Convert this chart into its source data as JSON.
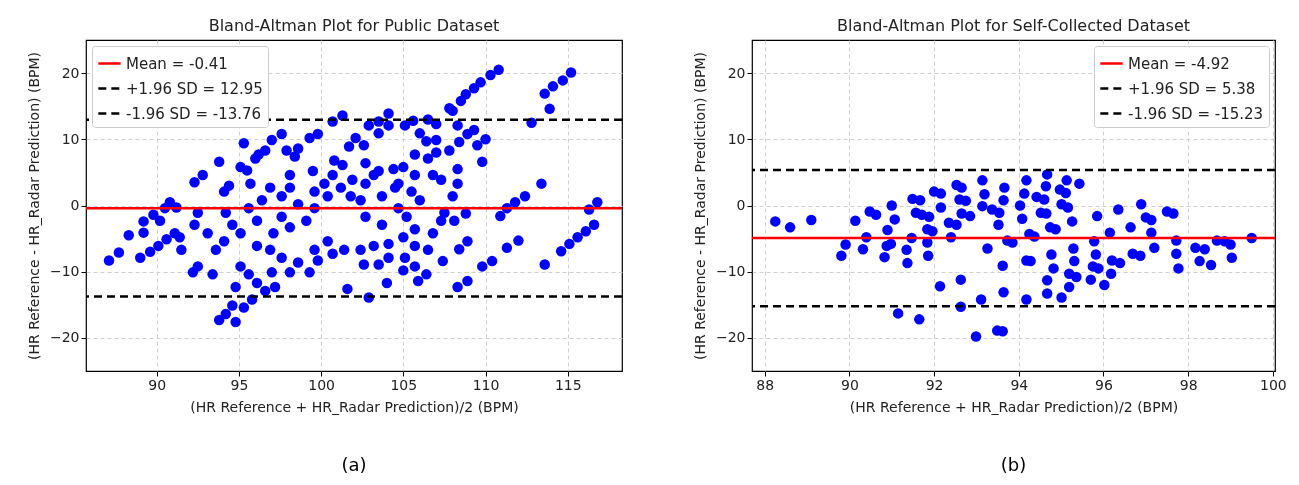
{
  "chart_data": [
    {
      "type": "scatter",
      "title": "Bland-Altman Plot for Public Dataset",
      "xlabel": "(HR Reference + HR_Radar Prediction)/2 (BPM)",
      "ylabel": "(HR Reference - HR_Radar Prediction) (BPM)",
      "xlim": [
        85.7,
        118.3
      ],
      "ylim": [
        -25,
        25
      ],
      "xticks": [
        90,
        95,
        100,
        105,
        110,
        115
      ],
      "yticks": [
        -20,
        -10,
        0,
        10,
        20
      ],
      "grid": true,
      "marker": "circle",
      "legend": "top left",
      "annotations": [
        "(a)"
      ],
      "ref_lines": [
        {
          "axis": "y",
          "value": -0.41,
          "label": "Mean = -0.41",
          "color": "#ff0000",
          "line_style": "solid"
        },
        {
          "axis": "y",
          "value": 12.95,
          "label": "+1.96 SD = 12.95",
          "color": "#000000",
          "line_style": "dashed"
        },
        {
          "axis": "y",
          "value": -13.76,
          "label": "-1.96 SD = -13.76",
          "color": "#000000",
          "line_style": "dashed"
        }
      ],
      "series": [
        {
          "color": "#0000ff",
          "x": [
            87.1,
            87.7,
            88.3,
            89.0,
            89.2,
            89.2,
            89.6,
            89.8,
            90.1,
            90.2,
            90.5,
            90.8,
            90.6,
            91.2,
            91.1,
            91.5,
            91.4,
            92.3,
            92.8,
            92.2,
            92.5,
            92.5,
            92.3,
            93.1,
            93.4,
            93.8,
            93.8,
            94.2,
            94.8,
            94.6,
            95.3,
            95.3,
            95.1,
            95.5,
            94.1,
            94.4,
            96.0,
            96.2,
            97.0,
            96.6,
            97.6,
            97.9,
            98.4,
            98.6,
            99.3,
            99.8,
            95.7,
            96.4,
            94.2,
            94.6,
            94.1,
            93.6,
            95.1,
            95.6,
            96.1,
            96.6,
            97.2,
            97.0,
            94.8,
            95.8,
            96.1,
            96.9,
            97.6,
            98.1,
            98.6,
            99.3,
            99.8,
            98.1,
            99.1,
            97.6,
            98.1,
            99.5,
            97.6,
            97.1,
            99.6,
            100.4,
            100.7,
            101.4,
            101.6,
            100.7,
            100.8,
            101.3,
            101.3,
            100.7,
            101.7,
            102.1,
            102.6,
            101.2,
            101.9,
            102.7,
            103.2,
            102.7,
            103.5,
            101.8,
            102.4,
            102.9,
            103.5,
            103.5,
            104.1,
            104.1,
            102.9,
            104.0,
            102.6,
            102.4,
            102.7,
            103.2,
            103.5,
            104.1,
            104.1,
            103.7,
            104.5,
            104.4,
            105.0,
            105.1,
            105.6,
            106.5,
            106.0,
            106.4,
            107.0,
            107.0,
            105.7,
            105.7,
            106.5,
            106.8,
            107.0,
            107.3,
            107.8,
            107.8,
            108.0,
            108.3,
            108.5,
            108.8,
            109.3,
            109.7,
            110.3,
            110.8,
            108.4,
            108.9,
            109.3,
            109.5,
            110.0,
            109.8,
            108.3,
            108.3,
            108.0,
            107.5,
            107.3,
            108.1,
            108.8,
            108.9,
            108.4,
            107.4,
            105.7,
            105.7,
            106.5,
            106.8,
            105.2,
            105.0,
            105.1,
            105.0,
            105.7,
            105.9,
            106.4,
            108.3,
            108.9,
            109.8,
            110.4,
            110.9,
            111.3,
            111.8,
            112.4,
            111.3,
            112.0,
            112.8,
            113.4,
            113.6,
            113.6,
            113.9,
            114.1,
            114.7,
            115.2,
            114.6,
            115.1,
            115.6,
            116.1,
            116.6,
            116.3,
            116.8,
            99.6,
            100.2,
            100.4,
            99.6,
            98.6,
            96.9,
            95.6,
            96.1,
            95.1,
            98.1,
            104.7,
            105.5,
            106.0,
            103.7,
            104.7
          ],
          "values": [
            -8.3,
            -7.1,
            -4.5,
            -7.9,
            -4.1,
            -2.4,
            -7.0,
            -1.4,
            -6.1,
            -2.3,
            -0.4,
            0.5,
            -5.1,
            -0.3,
            -4.2,
            -6.7,
            -4.8,
            3.5,
            4.6,
            -10.1,
            -1.1,
            -9.2,
            -2.9,
            -4.2,
            -10.4,
            6.6,
            -17.3,
            -16.4,
            -17.6,
            -15.1,
            -15.4,
            9.4,
            5.8,
            5.3,
            2.1,
            3.0,
            7.1,
            7.7,
            9.9,
            8.3,
            10.8,
            8.3,
            7.4,
            8.6,
            10.2,
            10.8,
            3.3,
            0.8,
            -1.1,
            -2.9,
            -5.4,
            -6.7,
            -9.2,
            -10.4,
            -11.7,
            -12.9,
            -12.3,
            -10.1,
            -12.3,
            -14.2,
            -6.1,
            -6.7,
            -7.9,
            -10.1,
            -8.6,
            -10.1,
            -8.3,
            -3.3,
            -2.3,
            1.4,
            2.7,
            5.2,
            -1.7,
            -4.2,
            -6.7,
            -5.4,
            -7.3,
            -6.7,
            -12.6,
            4.6,
            6.8,
            6.1,
            13.6,
            12.7,
            8.9,
            10.2,
            9.1,
            2.7,
            3.9,
            3.3,
            4.6,
            6.4,
            5.2,
            1.4,
            0.8,
            12.1,
            12.7,
            10.9,
            13.9,
            12.1,
            -13.9,
            -11.7,
            -8.9,
            -6.7,
            -1.7,
            -6.1,
            -8.9,
            -5.8,
            -7.9,
            -2.9,
            2.7,
            5.5,
            5.8,
            12.1,
            12.8,
            13.0,
            10.9,
            9.7,
            12.3,
            9.9,
            7.7,
            4.6,
            7.1,
            4.6,
            8.0,
            3.9,
            8.3,
            14.7,
            14.3,
            12.1,
            15.8,
            16.8,
            17.7,
            18.6,
            19.7,
            20.5,
            9.6,
            10.8,
            11.4,
            9.1,
            10.0,
            6.6,
            5.5,
            3.3,
            1.4,
            -1.1,
            -2.3,
            -2.3,
            -1.2,
            -5.4,
            -6.6,
            -8.4,
            -3.6,
            -6.1,
            -6.7,
            -4.2,
            -1.7,
            -4.8,
            -7.9,
            -9.8,
            -9.2,
            -11.4,
            -10.4,
            -12.3,
            -11.4,
            -9.2,
            -8.4,
            -1.6,
            -0.4,
            0.5,
            1.4,
            -6.4,
            -5.3,
            12.5,
            3.3,
            -8.9,
            16.9,
            14.6,
            18.0,
            18.9,
            20.1,
            -6.9,
            -5.8,
            -4.8,
            -3.9,
            -2.9,
            -0.6,
            0.5,
            2.1,
            3.3,
            1.4,
            -0.4,
            0.2,
            2.7,
            -0.4,
            -2.3,
            -4.2,
            4.6,
            3.3,
            2.1,
            0.8,
            1.4,
            -0.4
          ]
        }
      ]
    },
    {
      "type": "scatter",
      "title": "Bland-Altman Plot for Self-Collected Dataset",
      "xlabel": "(HR Reference + HR_Radar Prediction)/2 (BPM)",
      "ylabel": "(HR Reference - HR_Radar Prediction) (BPM)",
      "xlim": [
        87.7,
        100.05
      ],
      "ylim": [
        -25,
        25
      ],
      "xticks": [
        88,
        90,
        92,
        94,
        96,
        98,
        100
      ],
      "yticks": [
        -20,
        -10,
        0,
        10,
        20
      ],
      "grid": true,
      "marker": "circle",
      "legend": "top right",
      "annotations": [
        "(b)"
      ],
      "ref_lines": [
        {
          "axis": "y",
          "value": -4.92,
          "label": "Mean = -4.92",
          "color": "#ff0000",
          "line_style": "solid"
        },
        {
          "axis": "y",
          "value": 5.38,
          "label": "+1.96 SD = 5.38",
          "color": "#000000",
          "line_style": "dashed"
        },
        {
          "axis": "y",
          "value": -15.23,
          "label": "-1.96 SD = -15.23",
          "color": "#000000",
          "line_style": "dashed"
        }
      ],
      "series": [
        {
          "color": "#0000ff",
          "x": [
            88.25,
            88.6,
            89.1,
            89.81,
            89.91,
            90.14,
            90.32,
            90.4,
            90.48,
            90.63,
            90.83,
            90.88,
            90.9,
            90.98,
            91.0,
            91.07,
            91.15,
            91.35,
            91.37,
            91.47,
            91.49,
            91.57,
            91.67,
            91.65,
            91.71,
            91.84,
            91.84,
            91.86,
            91.88,
            91.96,
            92.0,
            92.16,
            92.14,
            92.16,
            92.35,
            92.4,
            92.53,
            92.53,
            92.6,
            92.65,
            92.63,
            92.63,
            92.65,
            92.75,
            92.85,
            93.11,
            93.14,
            93.19,
            93.14,
            93.26,
            92.99,
            93.37,
            93.52,
            93.54,
            93.49,
            93.62,
            93.62,
            93.64,
            93.66,
            93.64,
            93.73,
            93.85,
            94.03,
            94.08,
            94.13,
            94.18,
            94.18,
            94.18,
            94.28,
            94.25,
            94.37,
            94.42,
            94.52,
            94.6,
            94.65,
            94.67,
            94.64,
            94.67,
            94.67,
            94.74,
            94.77,
            94.87,
            94.82,
            94.97,
            95.01,
            95.01,
            95.11,
            95.13,
            95.16,
            95.19,
            95.19,
            95.26,
            95.29,
            95.31,
            95.36,
            95.43,
            95.7,
            95.75,
            95.78,
            95.82,
            95.85,
            95.88,
            96.02,
            96.15,
            96.18,
            96.2,
            96.35,
            96.39,
            96.64,
            96.69,
            96.87,
            96.89,
            97.0,
            97.13,
            97.13,
            97.2,
            97.5,
            97.65,
            97.72,
            97.72,
            97.77,
            98.17,
            98.27,
            98.39,
            98.54,
            98.68,
            98.86,
            99.0,
            99.03,
            99.5
          ],
          "values": [
            -2.4,
            -3.3,
            -2.2,
            -7.6,
            -5.9,
            -2.3,
            -6.6,
            -4.8,
            -0.9,
            -1.4,
            -7.8,
            -6.1,
            -3.7,
            -5.8,
            0.0,
            -2.1,
            -16.3,
            -6.7,
            -8.7,
            -4.9,
            1.0,
            -1.1,
            0.8,
            -17.2,
            -1.4,
            -3.6,
            -5.6,
            -7.6,
            -1.7,
            -3.9,
            2.1,
            1.8,
            -12.2,
            -0.3,
            -2.6,
            -4.8,
            -2.9,
            3.1,
            0.9,
            2.7,
            -11.2,
            -15.3,
            -1.2,
            0.7,
            -1.6,
            -14.2,
            3.8,
            1.7,
            -0.1,
            -6.5,
            -19.8,
            -0.6,
            -2.9,
            -1.1,
            -18.9,
            -19.0,
            -9.1,
            -13.1,
            2.7,
            0.8,
            -5.3,
            -5.6,
            0.0,
            -2.0,
            1.8,
            3.8,
            -14.2,
            -8.3,
            -8.4,
            -4.3,
            -4.7,
            1.3,
            -1.1,
            0.9,
            -1.2,
            4.7,
            2.9,
            -11.3,
            -13.3,
            -3.3,
            -7.4,
            -3.6,
            -9.5,
            2.4,
            0.2,
            -13.9,
            1.9,
            3.8,
            -0.3,
            -12.3,
            -10.3,
            -2.4,
            -6.5,
            -8.4,
            -10.8,
            3.3,
            -11.2,
            -9.2,
            -5.4,
            -7.4,
            -1.6,
            -9.5,
            -12.0,
            -4.1,
            -10.3,
            -8.3,
            -0.6,
            -8.7,
            -3.3,
            -7.3,
            -7.6,
            0.2,
            -1.8,
            -2.2,
            -4.1,
            -6.4,
            -0.9,
            -1.2,
            -5.3,
            -7.3,
            -9.5,
            -6.4,
            -8.4,
            -6.6,
            -9.0,
            -5.3,
            -5.4,
            -5.9,
            -7.9,
            -4.9
          ]
        }
      ]
    }
  ]
}
